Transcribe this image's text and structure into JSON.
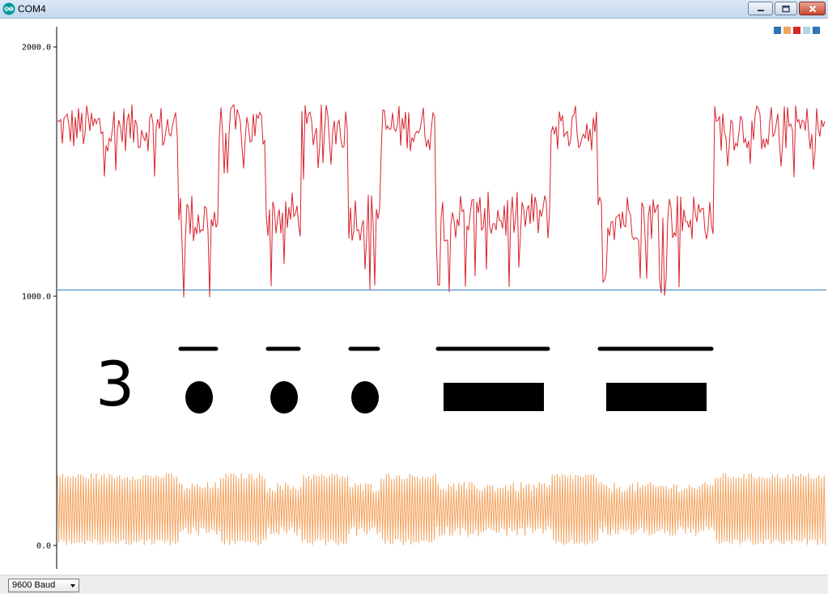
{
  "window": {
    "title": "COM4",
    "icon": "arduino-icon",
    "controls": [
      "minimize-icon",
      "maximize-icon",
      "close-icon"
    ]
  },
  "legend": {
    "colors": [
      "#2e75b6",
      "#f4a460",
      "#d62728",
      "#add8e6",
      "#2e75b6"
    ]
  },
  "statusbar": {
    "baud_rate": "9600 Baud"
  },
  "colors": {
    "series_red": "#d9232d",
    "series_orange": "#f4a460",
    "series_blue": "#2e75b6",
    "axis": "#000000"
  },
  "overlay": {
    "digit": "3",
    "morse_symbols": [
      "dot",
      "dot",
      "dot",
      "dash",
      "dash"
    ]
  },
  "chart_data": {
    "type": "line",
    "ylim": [
      0,
      2000
    ],
    "y_ticks": [
      "2000.0",
      "1000.0",
      "0.0"
    ],
    "y_tick_values": [
      2000,
      1000,
      0
    ],
    "grid": false,
    "legend_placement": "top-right",
    "series": [
      {
        "color": "#d9232d",
        "segments": [
          {
            "x_start": 0,
            "x_end": 150,
            "level": "high",
            "approx_range": [
              1500,
              1770
            ]
          },
          {
            "x_start": 150,
            "x_end": 200,
            "level": "low",
            "approx_range": [
              980,
              1420
            ]
          },
          {
            "x_start": 200,
            "x_end": 258,
            "level": "high",
            "approx_range": [
              1500,
              1770
            ]
          },
          {
            "x_start": 258,
            "x_end": 302,
            "level": "low",
            "approx_range": [
              1010,
              1420
            ]
          },
          {
            "x_start": 302,
            "x_end": 360,
            "level": "high",
            "approx_range": [
              1500,
              1770
            ]
          },
          {
            "x_start": 360,
            "x_end": 400,
            "level": "low",
            "approx_range": [
              1000,
              1420
            ]
          },
          {
            "x_start": 400,
            "x_end": 468,
            "level": "high",
            "approx_range": [
              1500,
              1770
            ]
          },
          {
            "x_start": 468,
            "x_end": 610,
            "level": "low",
            "approx_range": [
              1000,
              1420
            ]
          },
          {
            "x_start": 610,
            "x_end": 668,
            "level": "high",
            "approx_range": [
              1500,
              1770
            ]
          },
          {
            "x_start": 668,
            "x_end": 812,
            "level": "low",
            "approx_range": [
              1000,
              1420
            ]
          },
          {
            "x_start": 812,
            "x_end": 950,
            "level": "high",
            "approx_range": [
              1500,
              1770
            ]
          }
        ]
      },
      {
        "color": "#2e75b6",
        "constant": 1025
      },
      {
        "color": "#f4a460",
        "approx_range": [
          0,
          290
        ],
        "pattern": "rapid oscillation"
      }
    ]
  }
}
